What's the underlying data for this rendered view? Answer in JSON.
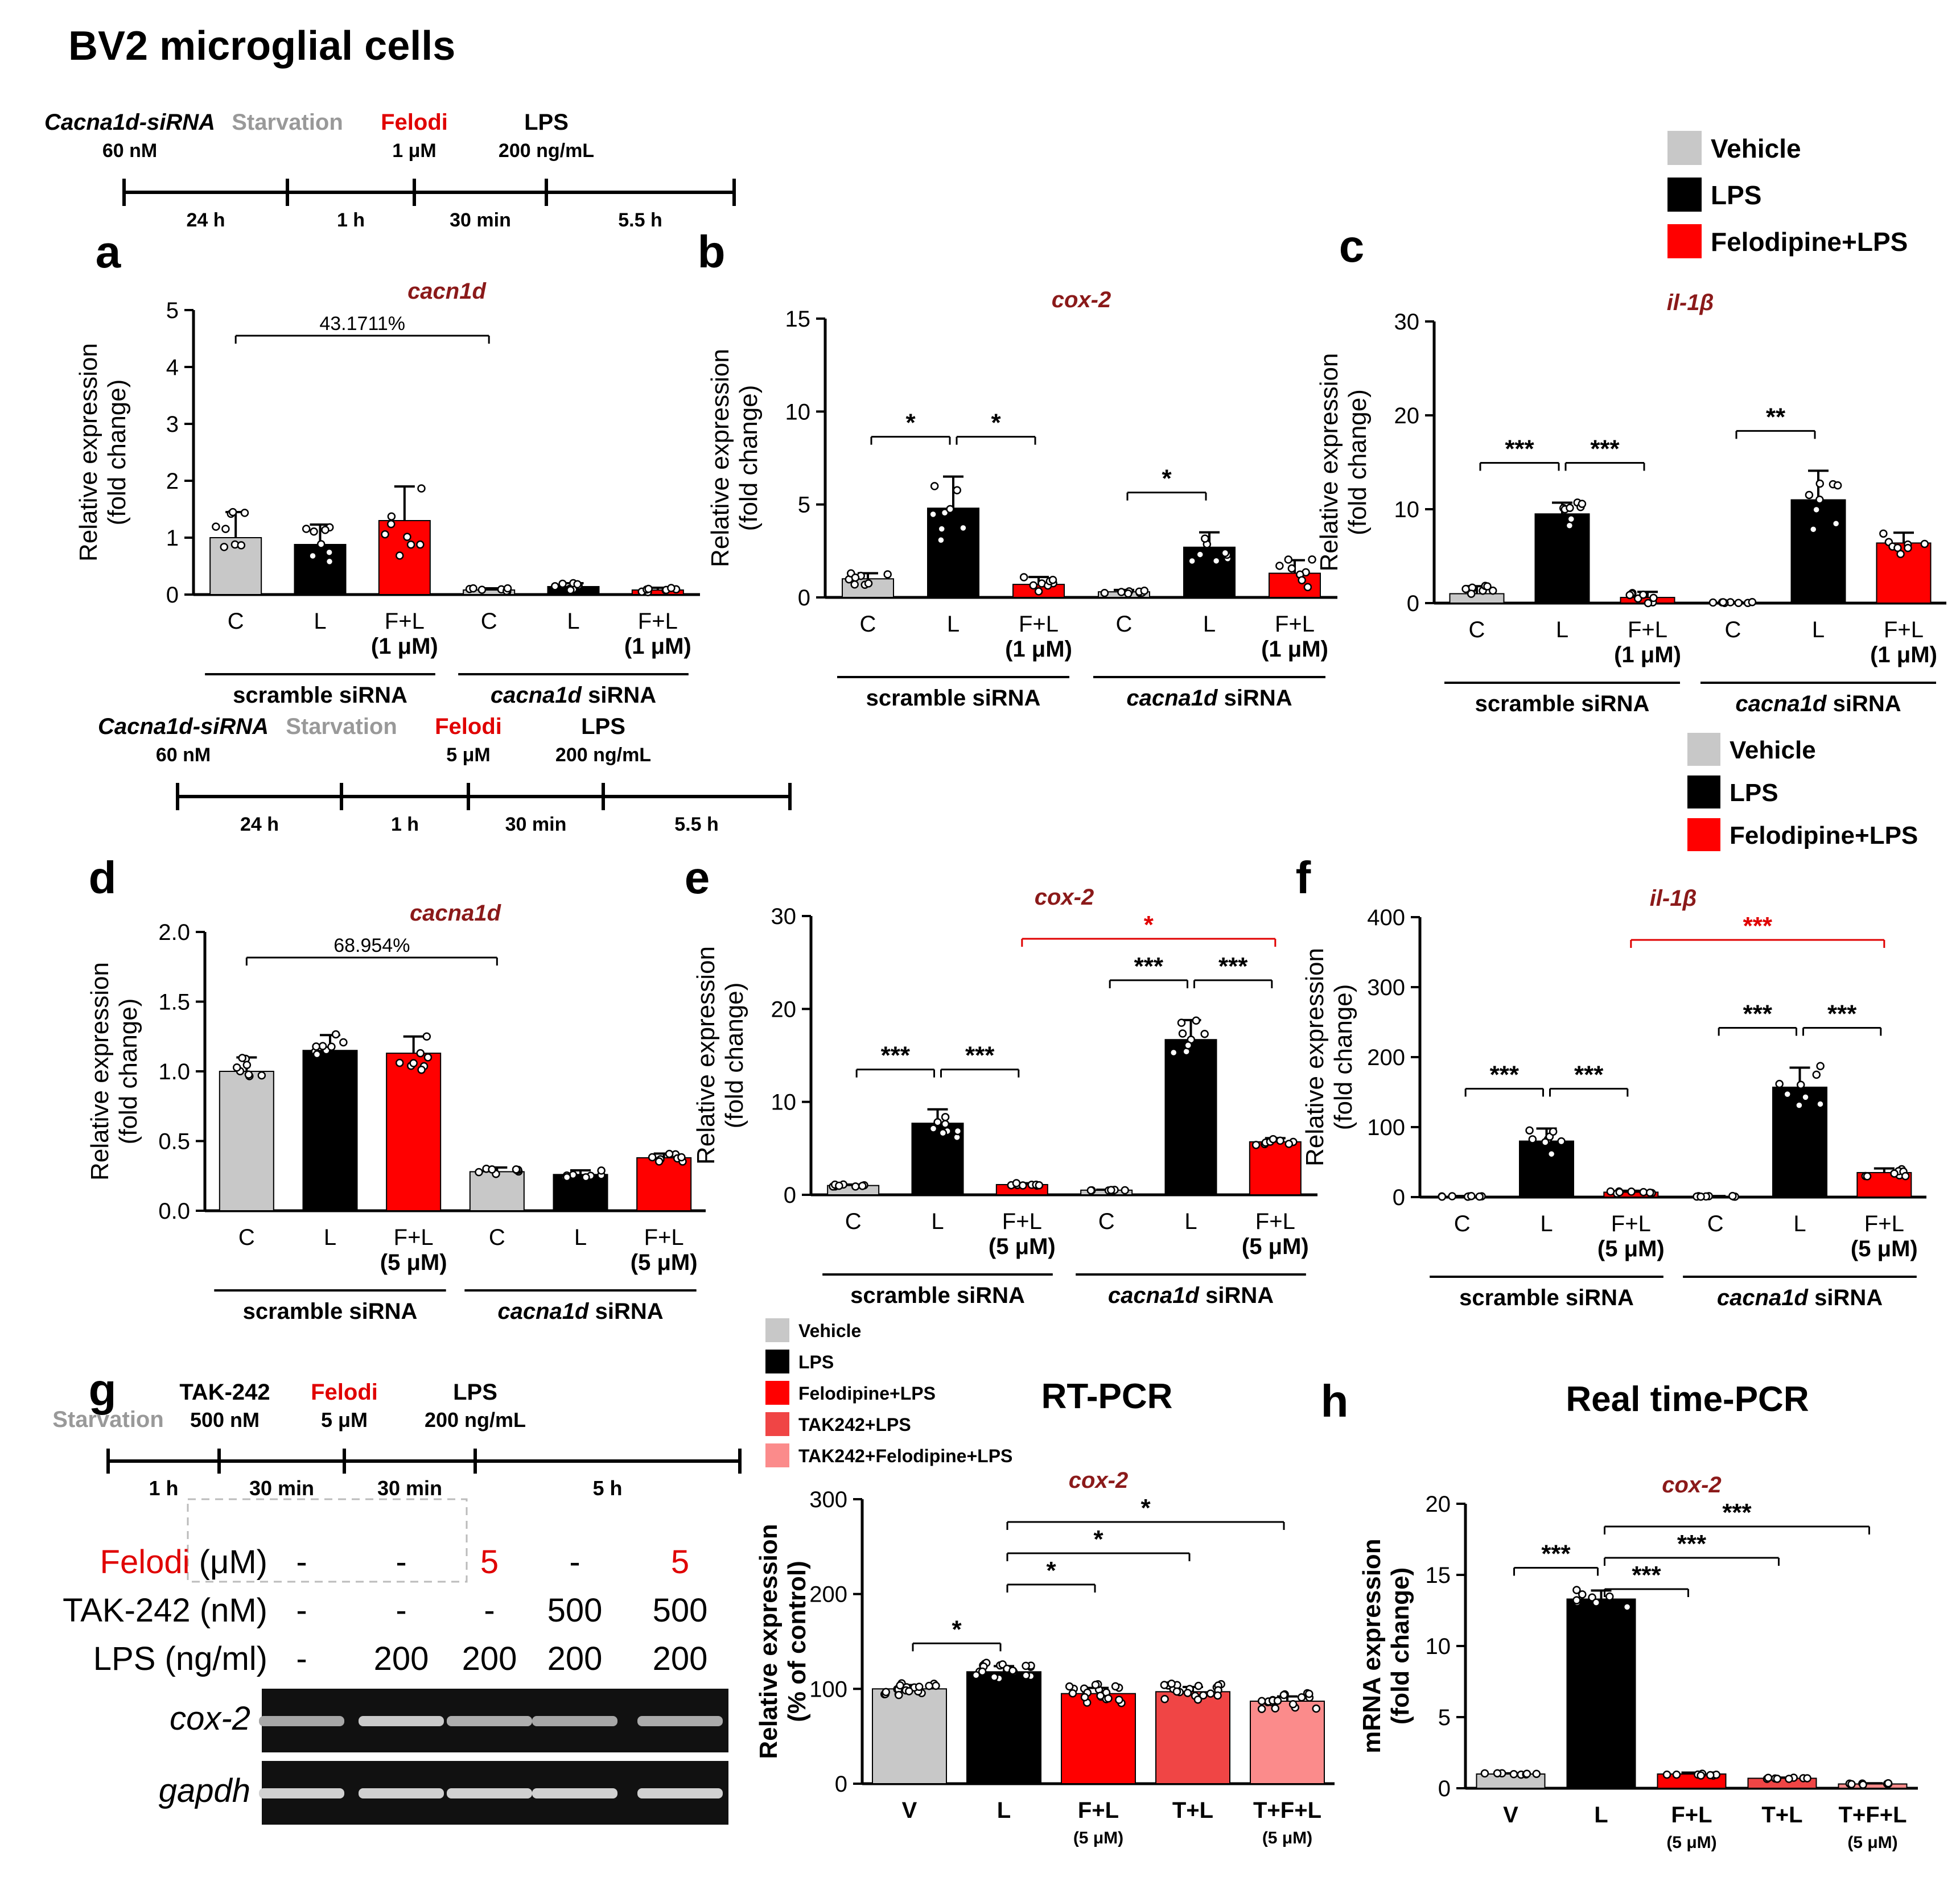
{
  "figure_title": "BV2 microglial cells",
  "colors": {
    "vehicle": "#c8c8c8",
    "lps": "#000000",
    "felo": "#ff0000",
    "tak": "#f04545",
    "takfelo": "#fb8b8b",
    "gene": "#8b1a1a",
    "accent": "#e00000",
    "timeline_grey": "#999999"
  },
  "timeline1": {
    "steps": [
      {
        "name": "Cacna1d-siRNA",
        "sub": "60 nM"
      },
      {
        "name": "Starvation",
        "sub": ""
      },
      {
        "name": "Felodi",
        "sub": "1 μM"
      },
      {
        "name": "LPS",
        "sub": "200 ng/mL"
      }
    ],
    "intervals": [
      "24 h",
      "1 h",
      "30 min",
      "5.5 h"
    ]
  },
  "timeline2": {
    "steps": [
      {
        "name": "Cacna1d-siRNA",
        "sub": "60 nM"
      },
      {
        "name": "Starvation",
        "sub": ""
      },
      {
        "name": "Felodi",
        "sub": "5 μM"
      },
      {
        "name": "LPS",
        "sub": "200 ng/mL"
      }
    ],
    "intervals": [
      "24 h",
      "1 h",
      "30 min",
      "5.5 h"
    ]
  },
  "timeline3": {
    "steps": [
      {
        "name": "Starvation",
        "sub": ""
      },
      {
        "name": "TAK-242",
        "sub": "500 nM"
      },
      {
        "name": "Felodi",
        "sub": "5 μM"
      },
      {
        "name": "LPS",
        "sub": "200 ng/mL"
      }
    ],
    "intervals": [
      "1 h",
      "30 min",
      "30 min",
      "5 h"
    ]
  },
  "legend1": [
    "Vehicle",
    "LPS",
    "Felodipine+LPS"
  ],
  "legend2": [
    "Vehicle",
    "LPS",
    "Felodipine+LPS"
  ],
  "legend3": [
    "Vehicle",
    "LPS",
    "Felodipine+LPS",
    "TAK242+LPS",
    "TAK242+Felodipine+LPS"
  ],
  "groups": {
    "scramble": "scramble siRNA",
    "knock_italic": "cacna1d",
    "knock_rest": " siRNA"
  },
  "gel": {
    "title": "RT-PCR",
    "rows": [
      {
        "label": "Felodi",
        "unit": " (μM)",
        "values": [
          "-",
          "-",
          "5",
          "-",
          "5"
        ]
      },
      {
        "label": "TAK-242 (nM)",
        "unit": "",
        "values": [
          "-",
          "-",
          "-",
          "500",
          "500"
        ]
      },
      {
        "label": "LPS (ng/ml)",
        "unit": "",
        "values": [
          "-",
          "200",
          "200",
          "200",
          "200"
        ]
      }
    ],
    "bands": [
      "cox-2",
      "gapdh"
    ],
    "band_intensity": {
      "cox-2": [
        0.55,
        0.8,
        0.6,
        0.55,
        0.58
      ],
      "gapdh": [
        0.85,
        0.85,
        0.85,
        0.85,
        0.85
      ]
    }
  },
  "h_title": "Real time-PCR",
  "chart_data": [
    {
      "id": "a",
      "panel": "a",
      "type": "bar",
      "title": "cacn1d",
      "ylabel": [
        "Relative expression",
        "(fold change)"
      ],
      "ylim": [
        0,
        5
      ],
      "yticks": [
        "0",
        "1",
        "2",
        "3",
        "4",
        "5"
      ],
      "categories": [
        "C",
        "L",
        "F+L (1 μM)",
        "C",
        "L",
        "F+L (1 μM)"
      ],
      "values": [
        1.0,
        0.88,
        1.3,
        0.08,
        0.14,
        0.08
      ],
      "errors": [
        0.45,
        0.35,
        0.6,
        0.03,
        0.06,
        0.04
      ],
      "annotations": [
        {
          "from": 0,
          "to": 3,
          "label": "43.1711%"
        }
      ]
    },
    {
      "id": "b",
      "panel": "b",
      "type": "bar",
      "title": "cox-2",
      "ylabel": [
        "Relative expression",
        "(fold change)"
      ],
      "ylim": [
        0,
        15
      ],
      "yticks": [
        "0",
        "5",
        "10",
        "15"
      ],
      "categories": [
        "C",
        "L",
        "F+L (1 μM)",
        "C",
        "L",
        "F+L (1 μM)"
      ],
      "values": [
        1.0,
        4.8,
        0.7,
        0.3,
        2.7,
        1.3
      ],
      "errors": [
        0.3,
        1.7,
        0.4,
        0.1,
        0.8,
        0.7
      ],
      "annotations": [
        {
          "from": 0,
          "to": 1,
          "label": "*"
        },
        {
          "from": 1,
          "to": 2,
          "label": "*"
        },
        {
          "from": 3,
          "to": 4,
          "label": "*"
        }
      ]
    },
    {
      "id": "c",
      "panel": "c",
      "type": "bar",
      "title": "il-1β",
      "ylabel": [
        "Relative expression",
        "(fold change)"
      ],
      "ylim": [
        0,
        30
      ],
      "yticks": [
        "0",
        "10",
        "20",
        "30"
      ],
      "categories": [
        "C",
        "L",
        "F+L (1 μM)",
        "C",
        "L",
        "F+L (1 μM)"
      ],
      "values": [
        1.0,
        9.5,
        0.6,
        0.05,
        11.0,
        6.4
      ],
      "errors": [
        0.8,
        1.2,
        0.6,
        0.05,
        3.1,
        1.1
      ],
      "annotations": [
        {
          "from": 0,
          "to": 1,
          "label": "***"
        },
        {
          "from": 1,
          "to": 2,
          "label": "***"
        },
        {
          "from": 3,
          "to": 4,
          "label": "**"
        }
      ]
    },
    {
      "id": "d",
      "panel": "d",
      "type": "bar",
      "title": "cacna1d",
      "ylabel": [
        "Relative expression",
        "(fold change)"
      ],
      "ylim": [
        0,
        2
      ],
      "yticks": [
        "0.0",
        "0.5",
        "1.0",
        "1.5",
        "2.0"
      ],
      "categories": [
        "C",
        "L",
        "F+L (5 μM)",
        "C",
        "L",
        "F+L (5 μM)"
      ],
      "values": [
        1.0,
        1.15,
        1.13,
        0.28,
        0.26,
        0.38
      ],
      "errors": [
        0.1,
        0.11,
        0.12,
        0.03,
        0.03,
        0.03
      ],
      "annotations": [
        {
          "from": 0,
          "to": 3,
          "label": "68.954%"
        }
      ]
    },
    {
      "id": "e",
      "panel": "e",
      "type": "bar",
      "title": "cox-2",
      "ylabel": [
        "Relative expression",
        "(fold change)"
      ],
      "ylim": [
        0,
        30
      ],
      "yticks": [
        "0",
        "10",
        "20",
        "30"
      ],
      "categories": [
        "C",
        "L",
        "F+L (5 μM)",
        "C",
        "L",
        "F+L (5 μM)"
      ],
      "values": [
        1.0,
        7.7,
        1.1,
        0.5,
        16.7,
        5.7
      ],
      "errors": [
        0.1,
        1.5,
        0.15,
        0.05,
        2.1,
        0.4
      ],
      "annotations": [
        {
          "from": 0,
          "to": 1,
          "label": "***"
        },
        {
          "from": 1,
          "to": 2,
          "label": "***"
        },
        {
          "from": 3,
          "to": 4,
          "label": "***"
        },
        {
          "from": 4,
          "to": 5,
          "label": "***"
        },
        {
          "from": 2,
          "to": 5,
          "label": "*",
          "red": true
        }
      ]
    },
    {
      "id": "f",
      "panel": "f",
      "type": "bar",
      "title": "il-1β",
      "ylabel": [
        "Relative expression",
        "(fold change)"
      ],
      "ylim": [
        0,
        400
      ],
      "yticks": [
        "0",
        "100",
        "200",
        "300",
        "400"
      ],
      "categories": [
        "C",
        "L",
        "F+L (5 μM)",
        "C",
        "L",
        "F+L (5 μM)"
      ],
      "values": [
        1,
        80,
        7,
        1,
        157,
        35
      ],
      "errors": [
        0.5,
        18,
        2,
        0.5,
        28,
        6
      ],
      "annotations": [
        {
          "from": 0,
          "to": 1,
          "label": "***"
        },
        {
          "from": 1,
          "to": 2,
          "label": "***"
        },
        {
          "from": 3,
          "to": 4,
          "label": "***"
        },
        {
          "from": 4,
          "to": 5,
          "label": "***"
        },
        {
          "from": 2,
          "to": 5,
          "label": "***",
          "red": true
        }
      ]
    },
    {
      "id": "g",
      "panel": "g",
      "type": "bar",
      "title": "cox-2",
      "ylabel": [
        "Relative expression",
        "(% of control)"
      ],
      "ylim": [
        0,
        300
      ],
      "yticks": [
        "0",
        "100",
        "200",
        "300"
      ],
      "categories": [
        "V",
        "L",
        "F+L (5 μM)",
        "T+L",
        "T+F+L (5 μM)"
      ],
      "values": [
        100,
        118,
        95,
        97,
        87
      ],
      "errors": [
        4,
        6,
        6,
        5,
        5
      ],
      "annotations": [
        {
          "from": 0,
          "to": 1,
          "label": "*"
        },
        {
          "from": 1,
          "to": 2,
          "label": "*"
        },
        {
          "from": 1,
          "to": 3,
          "label": "*"
        },
        {
          "from": 1,
          "to": 4,
          "label": "*"
        }
      ]
    },
    {
      "id": "h",
      "panel": "h",
      "type": "bar",
      "title": "cox-2",
      "ylabel": [
        "mRNA expression",
        "(fold change)"
      ],
      "ylim": [
        0,
        20
      ],
      "yticks": [
        "0",
        "5",
        "10",
        "15",
        "20"
      ],
      "categories": [
        "V",
        "L",
        "F+L (5 μM)",
        "T+L",
        "T+F+L (5 μM)"
      ],
      "values": [
        1.0,
        13.3,
        1.0,
        0.7,
        0.3
      ],
      "errors": [
        0.05,
        0.6,
        0.1,
        0.05,
        0.05
      ],
      "annotations": [
        {
          "from": 0,
          "to": 1,
          "label": "***"
        },
        {
          "from": 1,
          "to": 2,
          "label": "***"
        },
        {
          "from": 1,
          "to": 3,
          "label": "***"
        },
        {
          "from": 1,
          "to": 4,
          "label": "***"
        }
      ]
    }
  ]
}
